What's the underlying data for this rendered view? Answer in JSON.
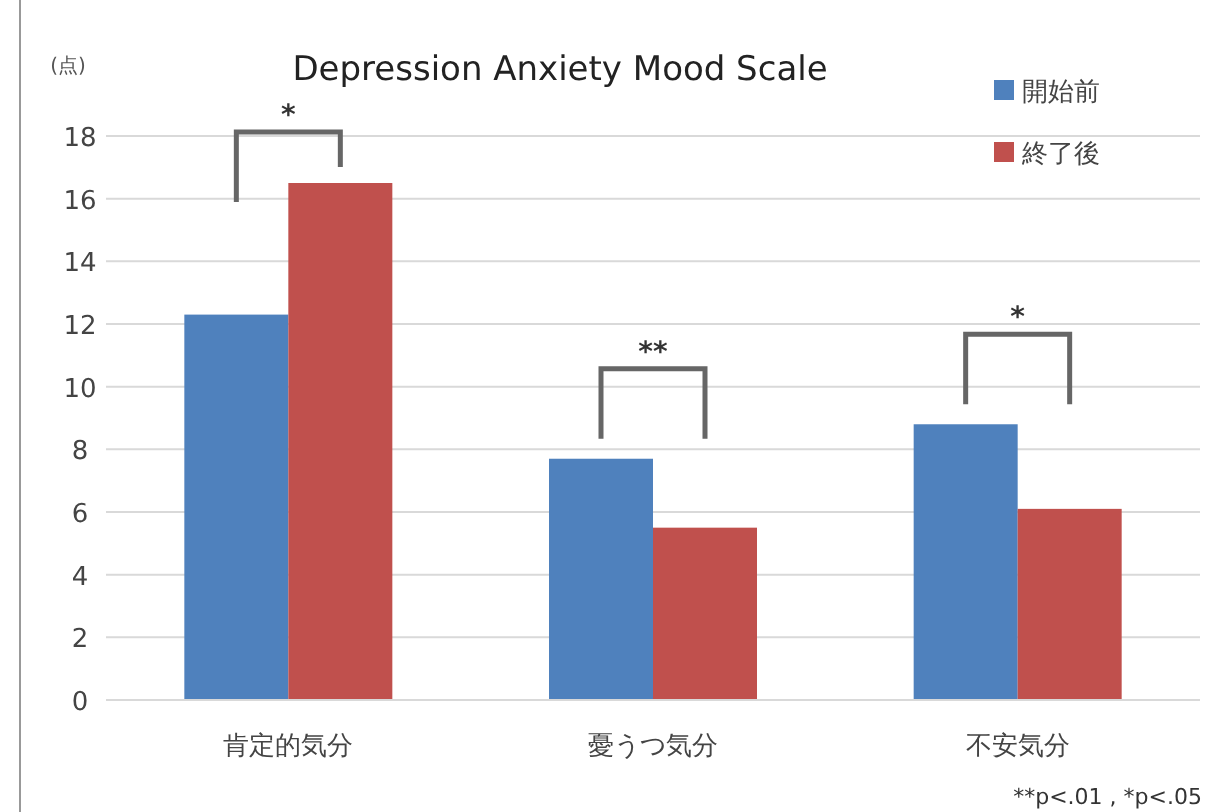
{
  "chart_data": {
    "type": "bar",
    "title": "Depression Anxiety Mood Scale",
    "ylabel": "(点)",
    "categories": [
      "肯定的気分",
      "憂うつ気分",
      "不安気分"
    ],
    "series": [
      {
        "name": "開始前",
        "color": "#4f81bd",
        "values": [
          12.3,
          7.7,
          8.8
        ]
      },
      {
        "name": "終了後",
        "color": "#c0504d",
        "values": [
          16.5,
          5.5,
          6.1
        ]
      }
    ],
    "ylim": [
      0,
      18
    ],
    "yticks": [
      0,
      2,
      4,
      6,
      8,
      10,
      12,
      14,
      16,
      18
    ],
    "grid": "y",
    "legend": "top right",
    "annotations": [
      "*",
      "**",
      "*",
      "**p<.01 , *p<.05"
    ]
  }
}
